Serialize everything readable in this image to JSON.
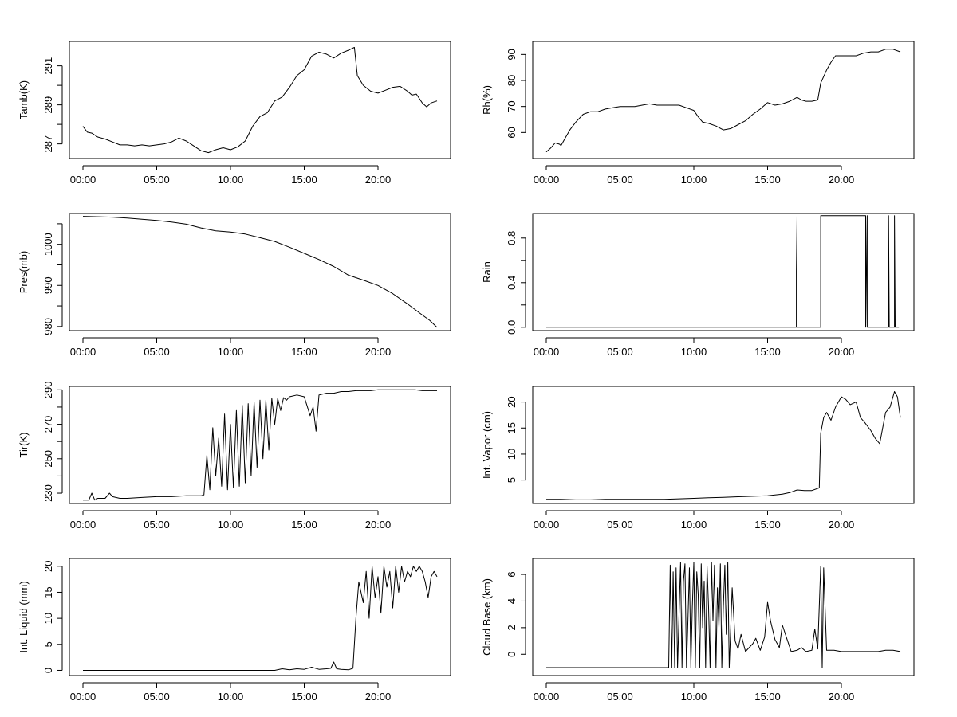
{
  "chart_data": [
    {
      "type": "line",
      "ylabel": "Tamb(K)",
      "xticks": [
        "00:00",
        "05:00",
        "10:00",
        "15:00",
        "20:00"
      ],
      "xlim": [
        0,
        24
      ],
      "ylim": [
        286.25,
        292.25
      ],
      "yticks": [
        287,
        289,
        291
      ],
      "yminor": [
        288,
        290
      ],
      "series": [
        {
          "x": [
            0,
            0.3,
            0.6,
            1,
            1.5,
            2,
            2.5,
            3,
            3.5,
            4,
            4.5,
            5,
            5.5,
            6,
            6.5,
            7,
            7.5,
            8,
            8.5,
            9,
            9.5,
            10,
            10.5,
            11,
            11.5,
            12,
            12.5,
            13,
            13.5,
            14,
            14.5,
            15,
            15.5,
            16,
            16.5,
            17,
            17.5,
            18,
            18.4,
            18.6,
            19,
            19.5,
            20,
            20.5,
            21,
            21.5,
            22,
            22.3,
            22.6,
            23,
            23.3,
            23.6,
            24
          ],
          "y": [
            287.9,
            287.6,
            287.55,
            287.35,
            287.25,
            287.1,
            286.95,
            286.95,
            286.9,
            286.95,
            286.9,
            286.95,
            287.0,
            287.1,
            287.3,
            287.15,
            286.9,
            286.65,
            286.55,
            286.7,
            286.8,
            286.7,
            286.85,
            287.15,
            287.9,
            288.4,
            288.6,
            289.2,
            289.4,
            289.9,
            290.5,
            290.8,
            291.5,
            291.7,
            291.6,
            291.4,
            291.65,
            291.8,
            291.95,
            290.5,
            290.0,
            289.7,
            289.6,
            289.75,
            289.9,
            289.95,
            289.7,
            289.5,
            289.55,
            289.1,
            288.9,
            289.1,
            289.2
          ]
        }
      ]
    },
    {
      "type": "line",
      "ylabel": "Rh(%)",
      "xticks": [
        "00:00",
        "05:00",
        "10:00",
        "15:00",
        "20:00"
      ],
      "xlim": [
        0,
        24
      ],
      "ylim": [
        50,
        95
      ],
      "yticks": [
        60,
        70,
        80,
        90
      ],
      "series": [
        {
          "x": [
            0,
            0.3,
            0.6,
            0.9,
            1,
            1.3,
            1.6,
            2,
            2.5,
            3,
            3.5,
            4,
            4.5,
            5,
            5.5,
            6,
            6.5,
            7,
            7.5,
            8,
            8.5,
            9,
            9.5,
            10,
            10.3,
            10.6,
            11,
            11.5,
            12,
            12.5,
            13,
            13.5,
            14,
            14.5,
            15,
            15.5,
            16,
            16.5,
            17,
            17.3,
            17.6,
            18,
            18.4,
            18.6,
            19,
            19.3,
            19.6,
            20,
            20.5,
            21,
            21.5,
            22,
            22.5,
            23,
            23.5,
            24
          ],
          "y": [
            52.5,
            54,
            56,
            55.5,
            55,
            58,
            61,
            64,
            67,
            68,
            68,
            69,
            69.5,
            70,
            70,
            70,
            70.5,
            71,
            70.5,
            70.5,
            70.5,
            70.5,
            69.5,
            68.5,
            66,
            64,
            63.5,
            62.5,
            61,
            61.5,
            63,
            64.5,
            67,
            69,
            71.5,
            70.5,
            71,
            72,
            73.5,
            72.5,
            72,
            72,
            72.5,
            79,
            84,
            87,
            89.5,
            89.5,
            89.5,
            89.5,
            90.5,
            91,
            91,
            92,
            92,
            91
          ]
        }
      ]
    },
    {
      "type": "line",
      "ylabel": "Pres(mb)",
      "xticks": [
        "00:00",
        "05:00",
        "10:00",
        "15:00",
        "20:00"
      ],
      "xlim": [
        0,
        24
      ],
      "ylim": [
        979,
        1007.5
      ],
      "yticks": [
        980,
        990,
        1000
      ],
      "yminor": [
        985,
        995,
        1005
      ],
      "series": [
        {
          "x": [
            0,
            1,
            2,
            3,
            4,
            5,
            6,
            7,
            8,
            9,
            10,
            11,
            12,
            13,
            14,
            15,
            16,
            17,
            18,
            19,
            20,
            21,
            22,
            23,
            23.5,
            24
          ],
          "y": [
            1006.8,
            1006.7,
            1006.6,
            1006.4,
            1006.1,
            1005.8,
            1005.4,
            1004.9,
            1004.0,
            1003.3,
            1003.0,
            1002.5,
            1001.6,
            1000.7,
            999.3,
            997.8,
            996.3,
            994.6,
            992.5,
            991.3,
            990.0,
            988.0,
            985.5,
            982.8,
            981.5,
            979.8
          ]
        }
      ]
    },
    {
      "type": "line",
      "ylabel": "Rain",
      "xticks": [
        "00:00",
        "05:00",
        "10:00",
        "15:00",
        "20:00"
      ],
      "xlim": [
        0,
        24
      ],
      "ylim": [
        -0.03,
        1.02
      ],
      "yticks": [
        0.0,
        0.4,
        0.8
      ],
      "yticklabels": [
        "0.0",
        "0.4",
        "0.8"
      ],
      "yminor": [
        0.2,
        0.6
      ],
      "series": [
        {
          "x": [
            0,
            16.95,
            16.95,
            17.0,
            17.0,
            18.6,
            18.6,
            21.65,
            21.65,
            21.75,
            21.75,
            23.2,
            23.2,
            23.25,
            23.25,
            23.6,
            23.6,
            23.65,
            23.65,
            23.9
          ],
          "y": [
            0,
            0,
            0.5,
            1,
            0,
            0,
            1,
            1,
            0,
            1,
            0,
            0,
            1,
            0,
            0,
            0,
            1,
            0,
            0,
            0
          ]
        }
      ]
    },
    {
      "type": "line",
      "ylabel": "Tir(K)",
      "xticks": [
        "00:00",
        "05:00",
        "10:00",
        "15:00",
        "20:00"
      ],
      "xlim": [
        0,
        24
      ],
      "ylim": [
        224,
        292
      ],
      "yticks": [
        230,
        250,
        270,
        290
      ],
      "yminor": [
        240,
        260,
        280
      ],
      "series": [
        {
          "x": [
            0,
            0.4,
            0.6,
            0.8,
            1,
            1.5,
            1.8,
            2,
            2.5,
            3,
            4,
            5,
            6,
            7,
            8,
            8.2,
            8.4,
            8.6,
            8.8,
            9,
            9.2,
            9.4,
            9.6,
            9.8,
            10,
            10.2,
            10.4,
            10.6,
            10.8,
            11,
            11.2,
            11.4,
            11.6,
            11.8,
            12,
            12.2,
            12.4,
            12.6,
            12.8,
            13,
            13.2,
            13.4,
            13.6,
            13.8,
            14,
            14.5,
            15,
            15.4,
            15.6,
            15.8,
            16,
            16.5,
            17,
            17.5,
            18,
            18.5,
            19,
            19.5,
            20,
            20.5,
            21,
            21.5,
            22,
            22.5,
            23,
            23.5,
            24
          ],
          "y": [
            226,
            226,
            230,
            226,
            227,
            227,
            230,
            228,
            227,
            227,
            227.5,
            228,
            228,
            228.5,
            228.5,
            229,
            252,
            232,
            268,
            240,
            262,
            234,
            276,
            232,
            270,
            233,
            278,
            234,
            281,
            236,
            282,
            240,
            283,
            245,
            284,
            250,
            284,
            255,
            285,
            270,
            285,
            278,
            285.5,
            284,
            286,
            287,
            286,
            275,
            280,
            266,
            287,
            288,
            288,
            289,
            289,
            289.5,
            289.5,
            289.5,
            290,
            290,
            290,
            290,
            290,
            290,
            289.5,
            289.5,
            289.5
          ]
        }
      ]
    },
    {
      "type": "line",
      "ylabel": "Int. Vapor (cm)",
      "xticks": [
        "00:00",
        "05:00",
        "10:00",
        "15:00",
        "20:00"
      ],
      "xlim": [
        0,
        24
      ],
      "ylim": [
        0.5,
        23
      ],
      "yticks": [
        5,
        10,
        15,
        20
      ],
      "series": [
        {
          "x": [
            0,
            1,
            2,
            3,
            4,
            5,
            6,
            7,
            8,
            9,
            10,
            11,
            12,
            13,
            14,
            15,
            16,
            16.5,
            17,
            17.5,
            18,
            18.5,
            18.6,
            18.8,
            19,
            19.3,
            19.6,
            20,
            20.3,
            20.6,
            21,
            21.3,
            21.6,
            22,
            22.3,
            22.6,
            23,
            23.3,
            23.6,
            23.8,
            24
          ],
          "y": [
            1.3,
            1.3,
            1.2,
            1.2,
            1.3,
            1.3,
            1.3,
            1.3,
            1.3,
            1.4,
            1.5,
            1.6,
            1.7,
            1.8,
            1.9,
            2.0,
            2.3,
            2.6,
            3.1,
            3.0,
            3.0,
            3.5,
            14,
            17,
            18,
            16.5,
            19,
            21,
            20.5,
            19.5,
            20,
            17,
            16,
            14.5,
            13,
            12,
            18,
            19,
            22,
            21,
            17
          ]
        }
      ]
    },
    {
      "type": "line",
      "ylabel": "Int. Liquid (mm)",
      "xticks": [
        "00:00",
        "05:00",
        "10:00",
        "15:00",
        "20:00"
      ],
      "xlim": [
        0,
        24
      ],
      "ylim": [
        -1,
        21.5
      ],
      "yticks": [
        0,
        5,
        10,
        15,
        20
      ],
      "series": [
        {
          "x": [
            0,
            5,
            10,
            13,
            13.5,
            14,
            14.5,
            15,
            15.5,
            16,
            16.5,
            16.8,
            17,
            17.2,
            17.5,
            18,
            18.3,
            18.5,
            18.7,
            19,
            19.2,
            19.4,
            19.6,
            19.8,
            20,
            20.2,
            20.4,
            20.6,
            20.8,
            21,
            21.2,
            21.4,
            21.6,
            21.8,
            22,
            22.2,
            22.4,
            22.6,
            22.8,
            23,
            23.2,
            23.4,
            23.6,
            23.8,
            24
          ],
          "y": [
            0,
            0,
            0,
            0,
            0.3,
            0.1,
            0.3,
            0.2,
            0.6,
            0.2,
            0.3,
            0.4,
            1.6,
            0.3,
            0.2,
            0.1,
            0.4,
            10,
            17,
            13,
            19,
            10,
            20,
            14,
            18,
            11,
            20,
            16,
            19,
            12,
            20,
            15,
            20,
            17,
            19,
            18,
            20,
            19,
            20,
            19,
            17,
            14,
            18,
            19,
            18
          ]
        }
      ]
    },
    {
      "type": "line",
      "ylabel": "Cloud Base (km)",
      "xticks": [
        "00:00",
        "05:00",
        "10:00",
        "15:00",
        "20:00"
      ],
      "xlim": [
        0,
        24
      ],
      "ylim": [
        -1.6,
        7.2
      ],
      "yticks": [
        0,
        2,
        4,
        6
      ],
      "series": [
        {
          "x": [
            0,
            4,
            8.3,
            8.4,
            8.5,
            8.6,
            8.7,
            8.8,
            8.9,
            9,
            9.1,
            9.2,
            9.3,
            9.4,
            9.5,
            9.6,
            9.7,
            9.8,
            9.9,
            10,
            10.1,
            10.2,
            10.3,
            10.4,
            10.5,
            10.6,
            10.7,
            10.8,
            10.9,
            11,
            11.1,
            11.2,
            11.3,
            11.4,
            11.5,
            11.6,
            11.7,
            11.8,
            11.9,
            12,
            12.1,
            12.2,
            12.3,
            12.4,
            12.5,
            12.6,
            12.8,
            13,
            13.2,
            13.5,
            14,
            14.2,
            14.5,
            14.8,
            15,
            15.2,
            15.5,
            15.8,
            16,
            16.3,
            16.6,
            17,
            17.3,
            17.6,
            18,
            18.2,
            18.4,
            18.6,
            18.7,
            18.8,
            19,
            19.5,
            20,
            20.5,
            21,
            21.5,
            22,
            22.5,
            23,
            23.5,
            24
          ],
          "y": [
            -1,
            -1,
            -1,
            6.7,
            -1,
            6.2,
            -1,
            6.5,
            -1,
            3,
            6.9,
            -1,
            5.5,
            6.8,
            -1,
            2.5,
            6.5,
            -1,
            3.5,
            6.9,
            -1,
            6.2,
            4.5,
            -1,
            6.8,
            2,
            5.5,
            -1,
            6.6,
            3.5,
            -1,
            6.9,
            2.5,
            6.7,
            -1,
            5,
            2,
            6.8,
            -1,
            3.5,
            6.7,
            1.5,
            6.9,
            -1,
            2,
            5,
            1,
            0.4,
            1.5,
            0.2,
            0.8,
            1.2,
            0.3,
            1.3,
            3.9,
            2.5,
            1.1,
            0.5,
            2.2,
            1.2,
            0.2,
            0.3,
            0.5,
            0.2,
            0.3,
            1.9,
            0.4,
            6.6,
            -1,
            6.5,
            0.3,
            0.3,
            0.2,
            0.2,
            0.2,
            0.2,
            0.2,
            0.2,
            0.3,
            0.3,
            0.2
          ]
        }
      ]
    }
  ]
}
